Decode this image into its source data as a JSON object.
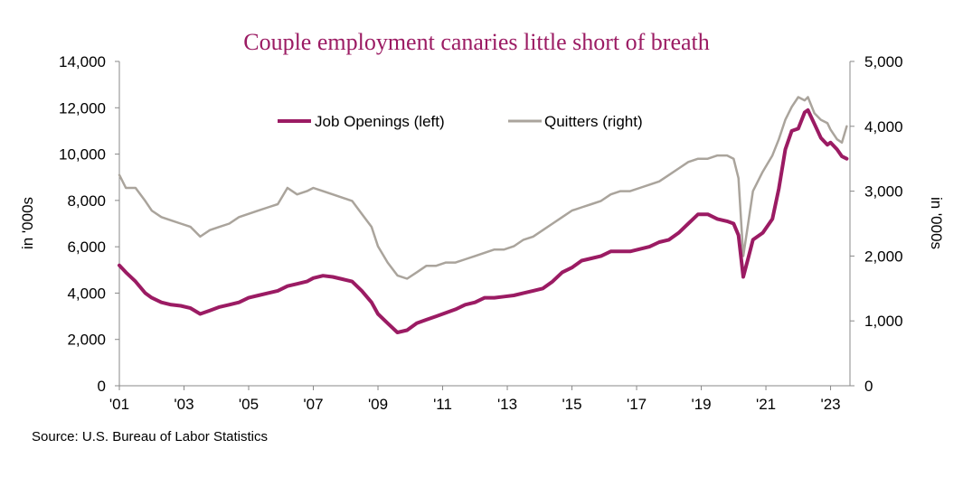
{
  "chart_data": {
    "type": "line",
    "title": "Couple employment canaries little short of breath",
    "source": "Source: U.S. Bureau of Labor Statistics",
    "ylabel_left": "in '000s",
    "ylabel_right": "in '000s",
    "y_left_range": [
      0,
      14000
    ],
    "y_right_range": [
      0,
      5000
    ],
    "y_left_ticks": [
      "0",
      "2,000",
      "4,000",
      "6,000",
      "8,000",
      "10,000",
      "12,000",
      "14,000"
    ],
    "y_right_ticks": [
      "0",
      "1,000",
      "2,000",
      "3,000",
      "4,000",
      "5,000"
    ],
    "x_range": [
      2001.0,
      2023.6
    ],
    "x_ticks": [
      {
        "year": 2001,
        "label": "'01"
      },
      {
        "year": 2003,
        "label": "'03"
      },
      {
        "year": 2005,
        "label": "'05"
      },
      {
        "year": 2007,
        "label": "'07"
      },
      {
        "year": 2009,
        "label": "'09"
      },
      {
        "year": 2011,
        "label": "'11"
      },
      {
        "year": 2013,
        "label": "'13"
      },
      {
        "year": 2015,
        "label": "'15"
      },
      {
        "year": 2017,
        "label": "'17"
      },
      {
        "year": 2019,
        "label": "'19"
      },
      {
        "year": 2021,
        "label": "'21"
      },
      {
        "year": 2023,
        "label": "'23"
      }
    ],
    "grid": false,
    "legend_position": "top-center",
    "series": [
      {
        "name": "Job Openings (left)",
        "axis": "left",
        "color": "#9b1b63",
        "points": [
          [
            2001.0,
            5200
          ],
          [
            2001.2,
            4900
          ],
          [
            2001.5,
            4500
          ],
          [
            2001.8,
            4000
          ],
          [
            2002.0,
            3800
          ],
          [
            2002.3,
            3600
          ],
          [
            2002.6,
            3500
          ],
          [
            2002.9,
            3450
          ],
          [
            2003.2,
            3350
          ],
          [
            2003.5,
            3100
          ],
          [
            2003.8,
            3250
          ],
          [
            2004.1,
            3400
          ],
          [
            2004.4,
            3500
          ],
          [
            2004.7,
            3600
          ],
          [
            2005.0,
            3800
          ],
          [
            2005.3,
            3900
          ],
          [
            2005.6,
            4000
          ],
          [
            2005.9,
            4100
          ],
          [
            2006.2,
            4300
          ],
          [
            2006.5,
            4400
          ],
          [
            2006.8,
            4500
          ],
          [
            2007.0,
            4650
          ],
          [
            2007.3,
            4750
          ],
          [
            2007.6,
            4700
          ],
          [
            2007.9,
            4600
          ],
          [
            2008.2,
            4500
          ],
          [
            2008.5,
            4100
          ],
          [
            2008.8,
            3600
          ],
          [
            2009.0,
            3100
          ],
          [
            2009.3,
            2700
          ],
          [
            2009.6,
            2300
          ],
          [
            2009.9,
            2400
          ],
          [
            2010.2,
            2700
          ],
          [
            2010.5,
            2850
          ],
          [
            2010.8,
            3000
          ],
          [
            2011.1,
            3150
          ],
          [
            2011.4,
            3300
          ],
          [
            2011.7,
            3500
          ],
          [
            2012.0,
            3600
          ],
          [
            2012.3,
            3800
          ],
          [
            2012.6,
            3800
          ],
          [
            2012.9,
            3850
          ],
          [
            2013.2,
            3900
          ],
          [
            2013.5,
            4000
          ],
          [
            2013.8,
            4100
          ],
          [
            2014.1,
            4200
          ],
          [
            2014.4,
            4500
          ],
          [
            2014.7,
            4900
          ],
          [
            2015.0,
            5100
          ],
          [
            2015.3,
            5400
          ],
          [
            2015.6,
            5500
          ],
          [
            2015.9,
            5600
          ],
          [
            2016.2,
            5800
          ],
          [
            2016.5,
            5800
          ],
          [
            2016.8,
            5800
          ],
          [
            2017.1,
            5900
          ],
          [
            2017.4,
            6000
          ],
          [
            2017.7,
            6200
          ],
          [
            2018.0,
            6300
          ],
          [
            2018.3,
            6600
          ],
          [
            2018.6,
            7000
          ],
          [
            2018.9,
            7400
          ],
          [
            2019.2,
            7400
          ],
          [
            2019.5,
            7200
          ],
          [
            2019.8,
            7100
          ],
          [
            2020.0,
            7000
          ],
          [
            2020.15,
            6500
          ],
          [
            2020.3,
            4700
          ],
          [
            2020.45,
            5500
          ],
          [
            2020.6,
            6300
          ],
          [
            2020.9,
            6600
          ],
          [
            2021.2,
            7200
          ],
          [
            2021.4,
            8500
          ],
          [
            2021.6,
            10200
          ],
          [
            2021.8,
            11000
          ],
          [
            2022.0,
            11100
          ],
          [
            2022.2,
            11800
          ],
          [
            2022.3,
            11900
          ],
          [
            2022.5,
            11300
          ],
          [
            2022.7,
            10700
          ],
          [
            2022.9,
            10400
          ],
          [
            2023.0,
            10500
          ],
          [
            2023.2,
            10200
          ],
          [
            2023.35,
            9900
          ],
          [
            2023.5,
            9800
          ]
        ]
      },
      {
        "name": "Quitters (right)",
        "axis": "right",
        "color": "#aaa49c",
        "points": [
          [
            2001.0,
            3250
          ],
          [
            2001.2,
            3050
          ],
          [
            2001.5,
            3050
          ],
          [
            2001.8,
            2850
          ],
          [
            2002.0,
            2700
          ],
          [
            2002.3,
            2600
          ],
          [
            2002.6,
            2550
          ],
          [
            2002.9,
            2500
          ],
          [
            2003.2,
            2450
          ],
          [
            2003.5,
            2300
          ],
          [
            2003.8,
            2400
          ],
          [
            2004.1,
            2450
          ],
          [
            2004.4,
            2500
          ],
          [
            2004.7,
            2600
          ],
          [
            2005.0,
            2650
          ],
          [
            2005.3,
            2700
          ],
          [
            2005.6,
            2750
          ],
          [
            2005.9,
            2800
          ],
          [
            2006.2,
            3050
          ],
          [
            2006.5,
            2950
          ],
          [
            2006.8,
            3000
          ],
          [
            2007.0,
            3050
          ],
          [
            2007.3,
            3000
          ],
          [
            2007.6,
            2950
          ],
          [
            2007.9,
            2900
          ],
          [
            2008.2,
            2850
          ],
          [
            2008.5,
            2650
          ],
          [
            2008.8,
            2450
          ],
          [
            2009.0,
            2150
          ],
          [
            2009.3,
            1900
          ],
          [
            2009.6,
            1700
          ],
          [
            2009.9,
            1650
          ],
          [
            2010.2,
            1750
          ],
          [
            2010.5,
            1850
          ],
          [
            2010.8,
            1850
          ],
          [
            2011.1,
            1900
          ],
          [
            2011.4,
            1900
          ],
          [
            2011.7,
            1950
          ],
          [
            2012.0,
            2000
          ],
          [
            2012.3,
            2050
          ],
          [
            2012.6,
            2100
          ],
          [
            2012.9,
            2100
          ],
          [
            2013.2,
            2150
          ],
          [
            2013.5,
            2250
          ],
          [
            2013.8,
            2300
          ],
          [
            2014.1,
            2400
          ],
          [
            2014.4,
            2500
          ],
          [
            2014.7,
            2600
          ],
          [
            2015.0,
            2700
          ],
          [
            2015.3,
            2750
          ],
          [
            2015.6,
            2800
          ],
          [
            2015.9,
            2850
          ],
          [
            2016.2,
            2950
          ],
          [
            2016.5,
            3000
          ],
          [
            2016.8,
            3000
          ],
          [
            2017.1,
            3050
          ],
          [
            2017.4,
            3100
          ],
          [
            2017.7,
            3150
          ],
          [
            2018.0,
            3250
          ],
          [
            2018.3,
            3350
          ],
          [
            2018.6,
            3450
          ],
          [
            2018.9,
            3500
          ],
          [
            2019.2,
            3500
          ],
          [
            2019.5,
            3550
          ],
          [
            2019.8,
            3550
          ],
          [
            2020.0,
            3500
          ],
          [
            2020.15,
            3200
          ],
          [
            2020.3,
            2000
          ],
          [
            2020.45,
            2500
          ],
          [
            2020.6,
            3000
          ],
          [
            2020.9,
            3300
          ],
          [
            2021.2,
            3550
          ],
          [
            2021.4,
            3800
          ],
          [
            2021.6,
            4100
          ],
          [
            2021.8,
            4300
          ],
          [
            2022.0,
            4450
          ],
          [
            2022.2,
            4400
          ],
          [
            2022.3,
            4450
          ],
          [
            2022.5,
            4200
          ],
          [
            2022.7,
            4100
          ],
          [
            2022.9,
            4050
          ],
          [
            2023.0,
            3950
          ],
          [
            2023.2,
            3800
          ],
          [
            2023.35,
            3750
          ],
          [
            2023.5,
            4000
          ]
        ]
      }
    ]
  }
}
